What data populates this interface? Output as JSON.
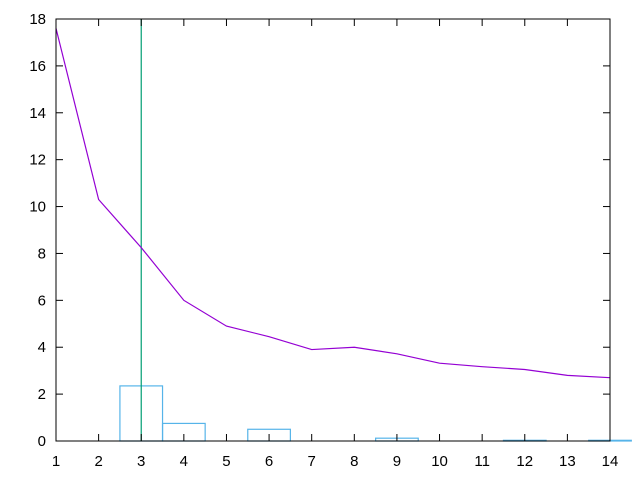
{
  "chart_data": {
    "type": "line",
    "title": "",
    "xlabel": "",
    "ylabel": "",
    "xlim": [
      1,
      14
    ],
    "ylim": [
      0,
      18
    ],
    "x_ticks": [
      1,
      2,
      3,
      4,
      5,
      6,
      7,
      8,
      9,
      10,
      11,
      12,
      13,
      14
    ],
    "y_ticks": [
      0,
      2,
      4,
      6,
      8,
      10,
      12,
      14,
      16,
      18
    ],
    "x_tick_labels": [
      "1",
      "2",
      "3",
      "4",
      "5",
      "6",
      "7",
      "8",
      "9",
      "10",
      "11",
      "12",
      "13",
      "14"
    ],
    "y_tick_labels": [
      "0",
      "2",
      "4",
      "6",
      "8",
      "10",
      "12",
      "14",
      "16",
      "18"
    ],
    "grid": false,
    "legend": "none",
    "series": [
      {
        "type": "line",
        "color": "#9400d3",
        "x": [
          1,
          2,
          3,
          4,
          5,
          6,
          7,
          8,
          9,
          10,
          11,
          12,
          13,
          14
        ],
        "values": [
          17.6,
          10.3,
          8.25,
          6.0,
          4.9,
          4.45,
          3.9,
          4.0,
          3.72,
          3.32,
          3.17,
          3.05,
          2.8,
          2.7
        ]
      },
      {
        "type": "bar",
        "color": "#009e73",
        "bar_width": 1,
        "x": [
          3,
          4,
          6,
          9,
          12,
          14
        ],
        "values": [
          2.35,
          0.75,
          0.5,
          0.12,
          0.03,
          0.03
        ]
      },
      {
        "type": "vline",
        "color": "#009e73",
        "x": 3
      }
    ]
  }
}
